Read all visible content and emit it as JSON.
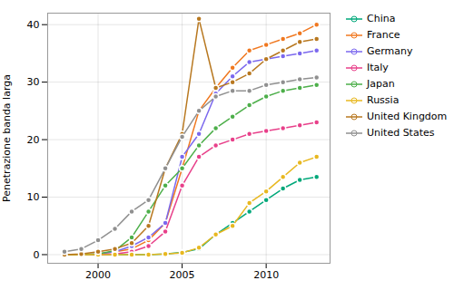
{
  "chart_data": {
    "type": "line",
    "y_label": "Penetrazione banda larga",
    "x": [
      1998,
      1999,
      2000,
      2001,
      2002,
      2003,
      2004,
      2005,
      2006,
      2007,
      2008,
      2009,
      2010,
      2011,
      2012,
      2013
    ],
    "series": [
      {
        "name": "China",
        "color": "#00A87A",
        "values": [
          0.0,
          0.0,
          0.0,
          0.0,
          0.0,
          0.0,
          0.1,
          0.4,
          1.0,
          3.5,
          5.5,
          7.5,
          9.5,
          11.5,
          13.0,
          13.5
        ]
      },
      {
        "name": "France",
        "color": "#F07820",
        "values": [
          0.0,
          0.0,
          0.1,
          0.5,
          1.0,
          2.5,
          5.5,
          15.0,
          25.0,
          29.0,
          32.5,
          35.5,
          36.5,
          37.5,
          38.5,
          40.0
        ]
      },
      {
        "name": "Germany",
        "color": "#7B68EE",
        "values": [
          0.0,
          0.0,
          0.1,
          0.5,
          1.5,
          3.0,
          5.5,
          17.0,
          21.0,
          28.0,
          31.0,
          33.5,
          34.0,
          34.5,
          35.0,
          35.5
        ]
      },
      {
        "name": "Italy",
        "color": "#E8408A",
        "values": [
          0.0,
          0.0,
          0.0,
          0.1,
          0.5,
          1.5,
          4.0,
          12.0,
          17.0,
          19.0,
          20.0,
          21.0,
          21.5,
          22.0,
          22.5,
          23.0
        ]
      },
      {
        "name": "Japan",
        "color": "#4DAF4A",
        "values": [
          0.0,
          0.0,
          0.1,
          0.7,
          3.0,
          7.5,
          12.0,
          15.0,
          19.0,
          22.0,
          24.0,
          26.0,
          27.5,
          28.5,
          29.0,
          29.5
        ]
      },
      {
        "name": "Russia",
        "color": "#E8B820",
        "values": [
          0.0,
          0.0,
          0.0,
          0.0,
          0.0,
          0.0,
          0.1,
          0.3,
          1.2,
          3.5,
          5.0,
          9.0,
          11.0,
          13.5,
          16.0,
          17.0
        ]
      },
      {
        "name": "United Kingdom",
        "color": "#B87820",
        "values": [
          0.0,
          0.1,
          0.5,
          1.0,
          2.0,
          5.0,
          15.0,
          21.0,
          41.0,
          29.0,
          30.0,
          31.5,
          34.0,
          35.5,
          37.0,
          37.5
        ]
      },
      {
        "name": "United States",
        "color": "#909090",
        "values": [
          0.5,
          1.0,
          2.5,
          4.5,
          7.5,
          9.5,
          15.0,
          20.5,
          25.0,
          27.5,
          28.5,
          28.5,
          29.5,
          30.0,
          30.5,
          30.8
        ]
      }
    ],
    "xlim": [
      1997.0,
      2013.8
    ],
    "ylim": [
      -1.5,
      42
    ],
    "xticks": [
      2000,
      2005,
      2010
    ],
    "yticks": [
      0,
      10,
      20,
      30,
      40
    ],
    "grid": true,
    "legend": "right",
    "marker": "circle"
  }
}
